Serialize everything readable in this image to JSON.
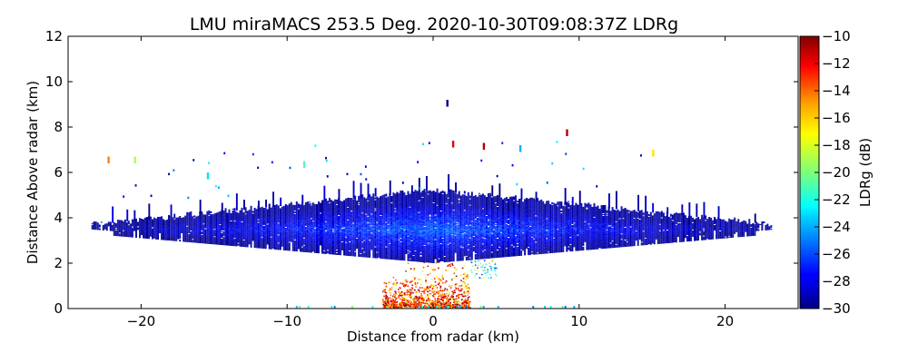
{
  "chart_data": {
    "type": "heatmap",
    "title": "LMU miraMACS 253.5 Deg. 2020-10-30T09:08:37Z  LDRg",
    "xlabel": "Distance from radar (km)",
    "ylabel": "Distance Above radar  (km)",
    "xlim": [
      -25,
      25
    ],
    "ylim": [
      0,
      12
    ],
    "x_ticks": [
      "−20",
      "−10",
      "0",
      "10",
      "20"
    ],
    "x_tick_values": [
      -20,
      -10,
      0,
      10,
      20
    ],
    "y_ticks": [
      "0",
      "2",
      "4",
      "6",
      "8",
      "10",
      "12"
    ],
    "y_tick_values": [
      0,
      2,
      4,
      6,
      8,
      10,
      12
    ],
    "colorbar": {
      "label": "LDRg (dB)",
      "range": [
        -30,
        -10
      ],
      "colormap": "jet",
      "ticks": [
        "−10",
        "−12",
        "−14",
        "−16",
        "−18",
        "−20",
        "−22",
        "−24",
        "−26",
        "−28",
        "−30"
      ],
      "tick_values": [
        -10,
        -12,
        -14,
        -16,
        -18,
        -20,
        -22,
        -24,
        -26,
        -28,
        -30
      ]
    },
    "grid": false,
    "features": [
      {
        "region": "cloud layer",
        "x_range": [
          -23.5,
          23.5
        ],
        "base_km": [
          2.0,
          3.3
        ],
        "top_km": [
          3.7,
          5.2
        ],
        "ldr_db": [
          -30,
          -25
        ]
      },
      {
        "region": "near-radar clutter",
        "x_range": [
          -5,
          3
        ],
        "height_km": [
          0,
          2
        ],
        "ldr_db": [
          -17,
          -10
        ]
      }
    ]
  }
}
